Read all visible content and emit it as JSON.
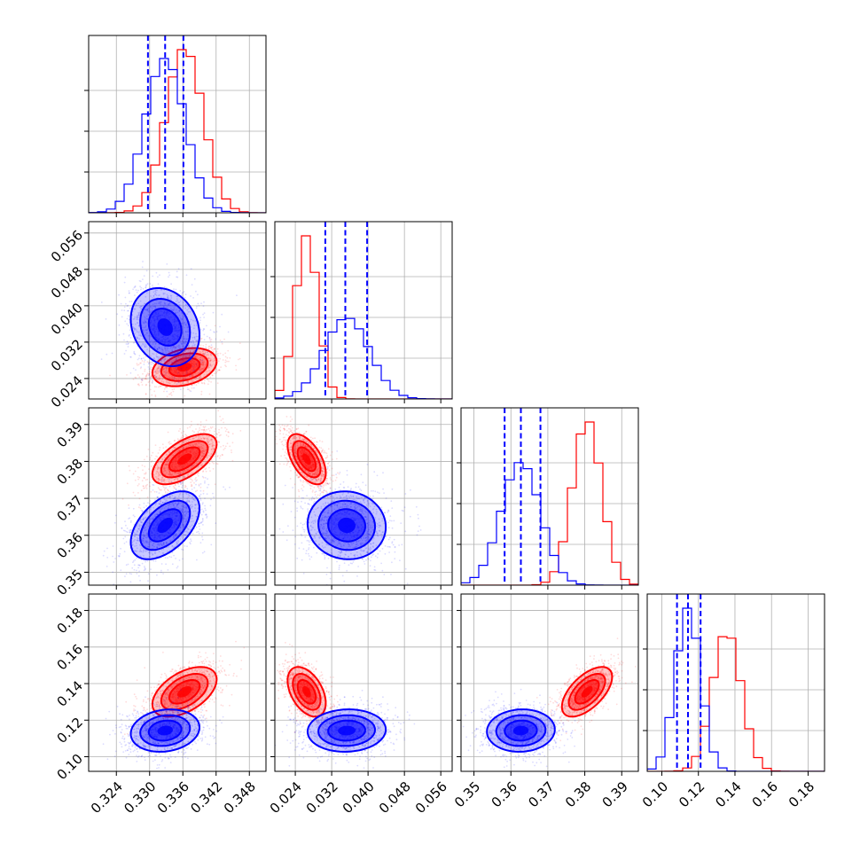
{
  "chart_data": {
    "type": "corner",
    "title": "",
    "n_params": 4,
    "params": [
      {
        "label": "",
        "range": [
          0.319,
          0.351
        ],
        "ticks": [
          0.324,
          0.33,
          0.336,
          0.342,
          0.348
        ],
        "tick_labels": [
          "0.324",
          "0.330",
          "0.336",
          "0.342",
          "0.348"
        ]
      },
      {
        "label": "",
        "range": [
          0.0195,
          0.0585
        ],
        "ticks": [
          0.024,
          0.032,
          0.04,
          0.048,
          0.056
        ],
        "tick_labels": [
          "0.024",
          "0.032",
          "0.040",
          "0.048",
          "0.056"
        ]
      },
      {
        "label": "",
        "range": [
          0.3465,
          0.3945
        ],
        "ticks": [
          0.35,
          0.36,
          0.37,
          0.38,
          0.39
        ],
        "tick_labels": [
          "0.35",
          "0.36",
          "0.37",
          "0.38",
          "0.39"
        ]
      },
      {
        "label": "",
        "range": [
          0.092,
          0.189
        ],
        "ticks": [
          0.1,
          0.12,
          0.14,
          0.16,
          0.18
        ],
        "tick_labels": [
          "0.10",
          "0.12",
          "0.14",
          "0.16",
          "0.18"
        ]
      }
    ],
    "grid": true,
    "series": [
      {
        "color": "#ff0000",
        "centers": [
          0.3363,
          0.0265,
          0.3806,
          0.1355
        ],
        "sigmas": [
          0.0029,
          0.0021,
          0.0034,
          0.0068
        ],
        "correlations": {
          "0-1": 0.3,
          "0-2": 0.6,
          "0-3": 0.5,
          "1-2": -0.55,
          "1-3": -0.45,
          "2-3": 0.6
        },
        "quantiles": null
      },
      {
        "color": "#0000ff",
        "centers": [
          0.3328,
          0.0353,
          0.3627,
          0.1143
        ],
        "sigmas": [
          0.0031,
          0.0043,
          0.0046,
          0.0058
        ],
        "correlations": {
          "0-1": -0.2,
          "0-2": 0.5,
          "0-3": 0.15,
          "1-2": -0.05,
          "1-3": 0.05,
          "2-3": 0.05
        },
        "quantiles": [
          [
            0.3297,
            0.3328,
            0.3361
          ],
          [
            0.0306,
            0.035,
            0.0398
          ],
          [
            0.3583,
            0.3627,
            0.368
          ],
          [
            0.1083,
            0.1143,
            0.1212
          ]
        ]
      }
    ]
  }
}
